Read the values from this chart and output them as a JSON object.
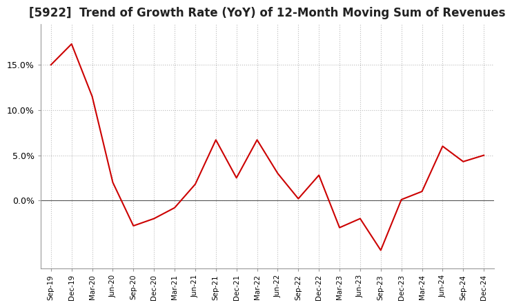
{
  "title": "[5922]  Trend of Growth Rate (YoY) of 12-Month Moving Sum of Revenues",
  "x_labels": [
    "Sep-19",
    "Dec-19",
    "Mar-20",
    "Jun-20",
    "Sep-20",
    "Dec-20",
    "Mar-21",
    "Jun-21",
    "Sep-21",
    "Dec-21",
    "Mar-22",
    "Jun-22",
    "Sep-22",
    "Dec-22",
    "Mar-23",
    "Jun-23",
    "Sep-23",
    "Dec-23",
    "Mar-24",
    "Jun-24",
    "Sep-24",
    "Dec-24"
  ],
  "y_values": [
    0.15,
    0.173,
    0.115,
    0.02,
    -0.028,
    -0.02,
    -0.008,
    0.018,
    0.067,
    0.025,
    0.067,
    0.03,
    0.002,
    0.028,
    -0.03,
    -0.02,
    -0.055,
    0.001,
    0.01,
    0.06,
    0.043,
    0.05
  ],
  "line_color": "#cc0000",
  "ylim_min": -0.075,
  "ylim_max": 0.195,
  "yticks": [
    0.0,
    0.05,
    0.1,
    0.15
  ],
  "background_color": "#ffffff",
  "grid_color": "#bbbbbb",
  "title_fontsize": 12,
  "zero_line_color": "#555555"
}
